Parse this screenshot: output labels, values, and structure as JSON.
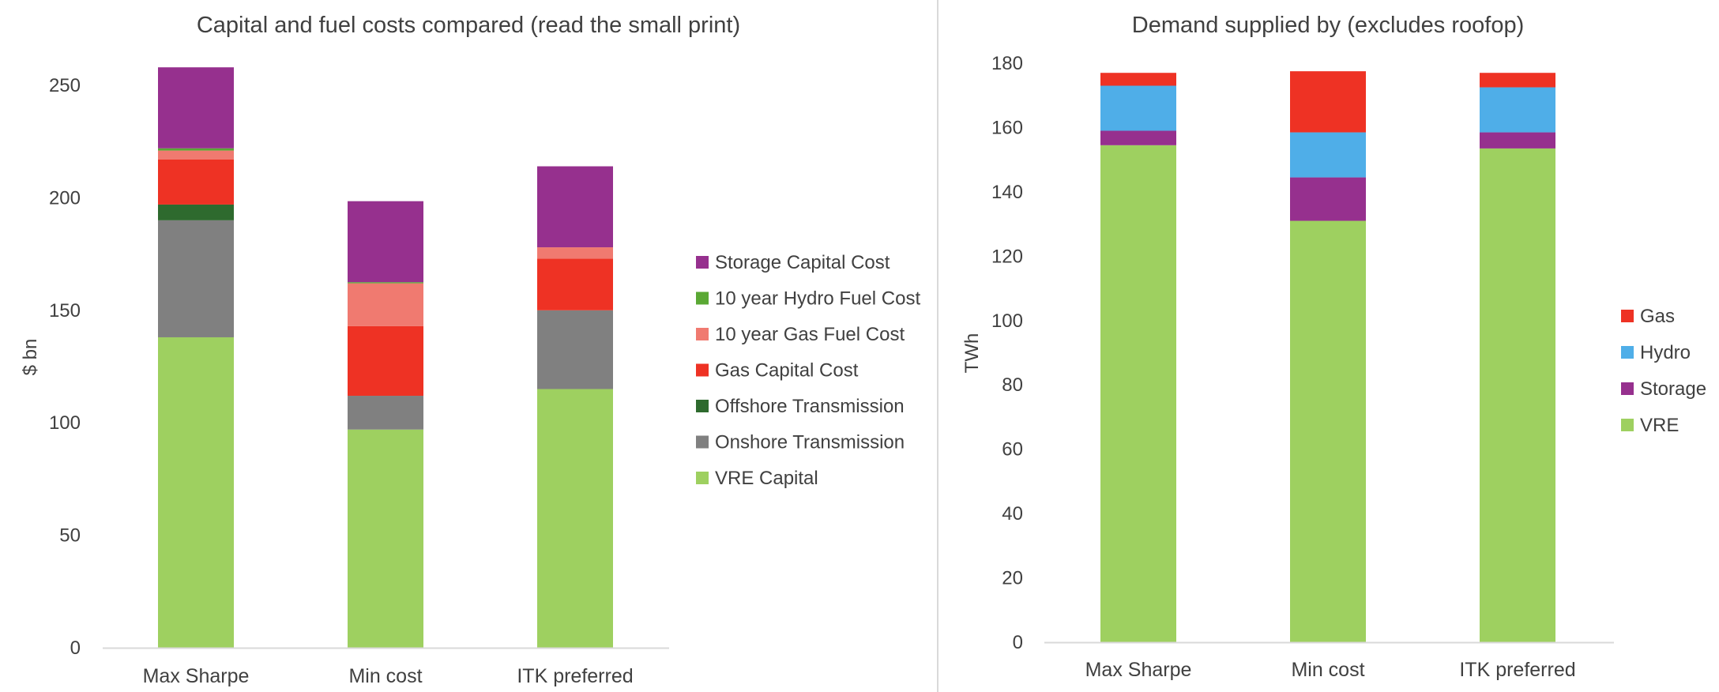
{
  "chart_data": [
    {
      "type": "bar",
      "stacked": true,
      "title": "Capital and fuel costs compared (read the small print)",
      "xlabel": "",
      "ylabel": "$ bn",
      "ylim": [
        0,
        250
      ],
      "yticks": [
        0,
        50,
        100,
        150,
        200,
        250
      ],
      "grid": false,
      "legend": "right",
      "categories": [
        "Max Sharpe",
        "Min cost",
        "ITK preferred"
      ],
      "series": [
        {
          "name": "VRE Capital",
          "color": "#9ED060",
          "values": [
            138,
            97,
            115
          ]
        },
        {
          "name": "Onshore Transmission",
          "color": "#808080",
          "values": [
            52,
            15,
            35
          ]
        },
        {
          "name": "Offshore Transmission",
          "color": "#2E6A2E",
          "values": [
            7,
            0,
            0
          ]
        },
        {
          "name": "Gas Capital Cost",
          "color": "#EE3224",
          "values": [
            20,
            31,
            23
          ]
        },
        {
          "name": "10 year Gas Fuel Cost",
          "color": "#F07A70",
          "values": [
            4,
            19,
            5
          ]
        },
        {
          "name": "10 year Hydro Fuel Cost",
          "color": "#5AA834",
          "values": [
            1,
            0.5,
            0
          ]
        },
        {
          "name": "Storage Capital Cost",
          "color": "#96308E",
          "values": [
            36,
            36,
            36
          ]
        }
      ]
    },
    {
      "type": "bar",
      "stacked": true,
      "title": "Demand supplied by  (excludes roofop)",
      "xlabel": "",
      "ylabel": "TWh",
      "ylim": [
        0,
        180
      ],
      "yticks": [
        0,
        20,
        40,
        60,
        80,
        100,
        120,
        140,
        160,
        180
      ],
      "grid": false,
      "legend": "right",
      "categories": [
        "Max Sharpe",
        "Min cost",
        "ITK preferred"
      ],
      "series": [
        {
          "name": "VRE",
          "color": "#9ED060",
          "values": [
            154.5,
            131,
            153.5
          ]
        },
        {
          "name": "Storage",
          "color": "#96308E",
          "values": [
            4.5,
            13.5,
            5
          ]
        },
        {
          "name": "Hydro",
          "color": "#4FAEE8",
          "values": [
            14,
            14,
            14
          ]
        },
        {
          "name": "Gas",
          "color": "#EE3224",
          "values": [
            4,
            19,
            4.5
          ]
        }
      ]
    }
  ]
}
